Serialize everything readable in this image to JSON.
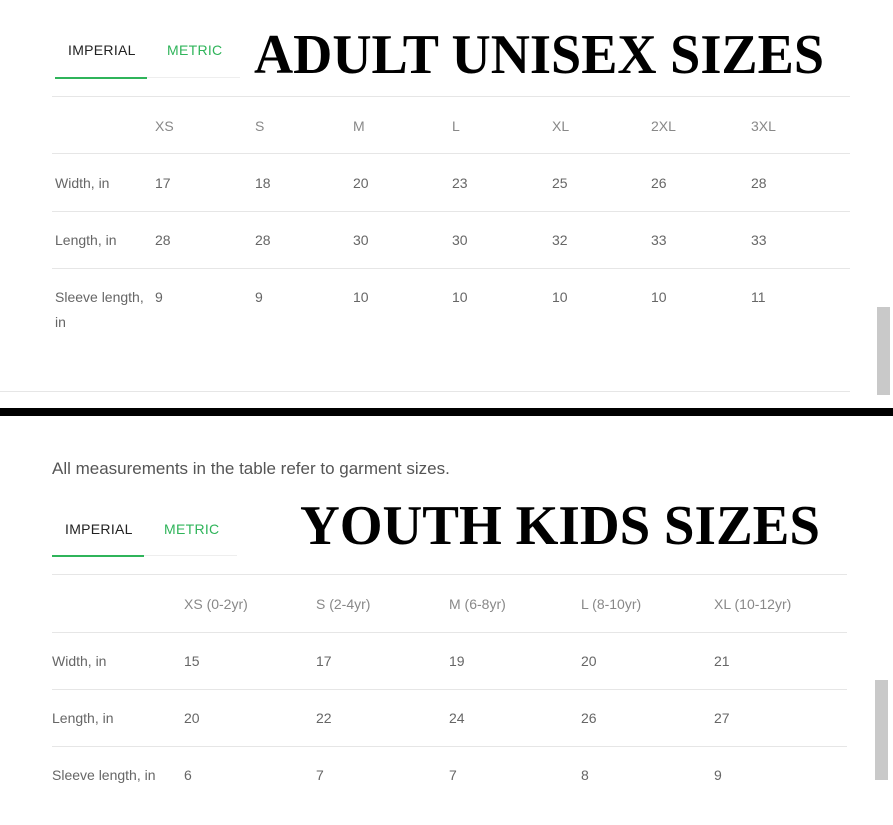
{
  "adult": {
    "tabs": [
      "IMPERIAL",
      "METRIC"
    ],
    "title": "ADULT UNISEX SIZES",
    "sizes": [
      "XS",
      "S",
      "M",
      "L",
      "XL",
      "2XL",
      "3XL"
    ],
    "rows": [
      {
        "label": "Width, in",
        "values": [
          17,
          18,
          20,
          23,
          25,
          26,
          28
        ]
      },
      {
        "label": "Length, in",
        "values": [
          28,
          28,
          30,
          30,
          32,
          33,
          33
        ]
      },
      {
        "label": "Sleeve length, in",
        "values": [
          9,
          9,
          10,
          10,
          10,
          10,
          11
        ]
      }
    ]
  },
  "youth": {
    "note": "All measurements in the table refer to garment sizes.",
    "tabs": [
      "IMPERIAL",
      "METRIC"
    ],
    "title": "YOUTH KIDS SIZES",
    "sizes": [
      "XS (0-2yr)",
      "S (2-4yr)",
      "M (6-8yr)",
      "L (8-10yr)",
      "XL (10-12yr)"
    ],
    "rows": [
      {
        "label": "Width, in",
        "values": [
          15,
          17,
          19,
          20,
          21
        ]
      },
      {
        "label": "Length, in",
        "values": [
          20,
          22,
          24,
          26,
          27
        ]
      },
      {
        "label": "Sleeve length, in",
        "values": [
          6,
          7,
          7,
          8,
          9
        ]
      }
    ]
  }
}
